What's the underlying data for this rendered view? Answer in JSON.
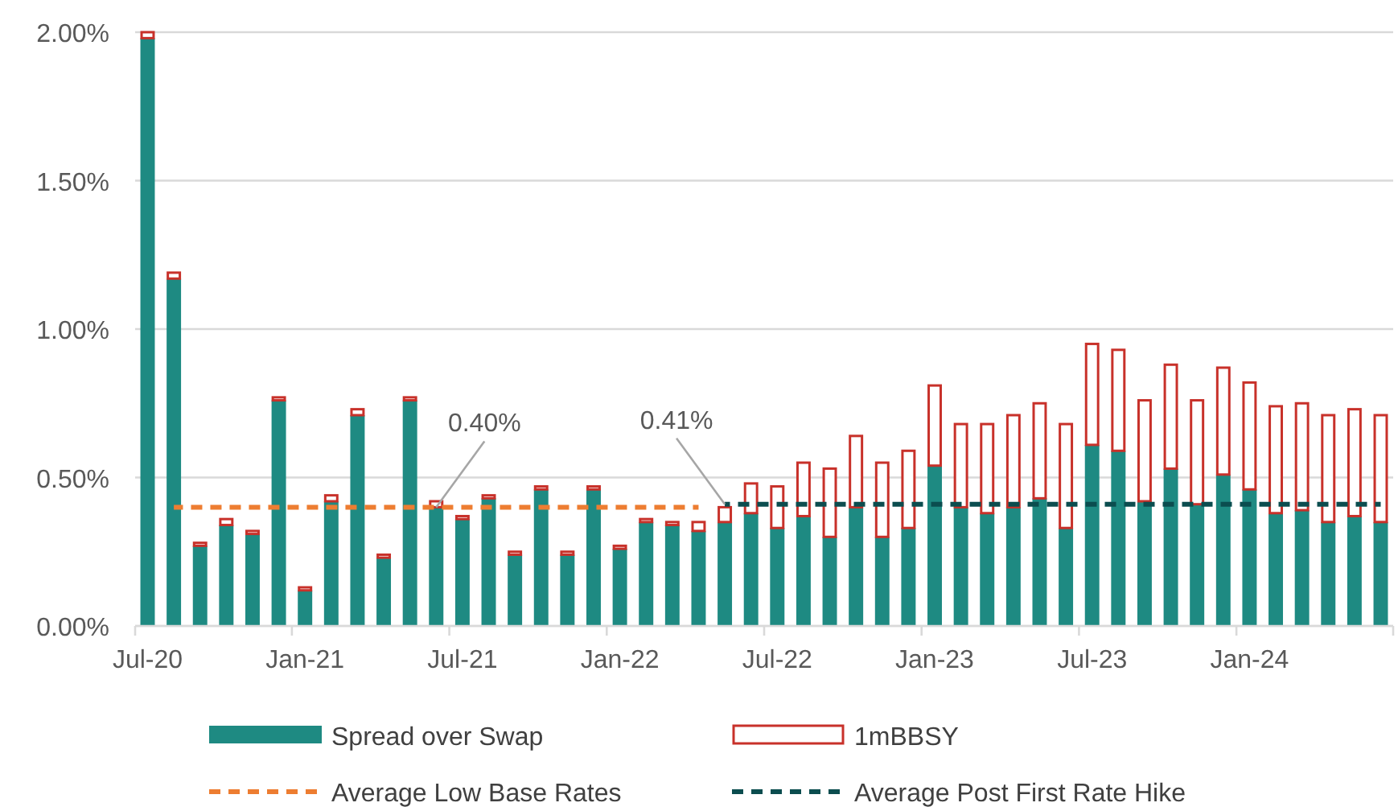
{
  "chart_data": {
    "type": "bar",
    "stacked": true,
    "categories": [
      "Jul-20",
      null,
      null,
      null,
      null,
      null,
      "Jan-21",
      null,
      null,
      null,
      null,
      null,
      "Jul-21",
      null,
      null,
      null,
      null,
      null,
      "Jan-22",
      null,
      null,
      null,
      null,
      null,
      "Jul-22",
      null,
      null,
      null,
      null,
      null,
      "Jan-23",
      null,
      null,
      null,
      null,
      null,
      "Jul-23",
      null,
      null,
      null,
      null,
      null,
      "Jan-24",
      null,
      null,
      null,
      null,
      null
    ],
    "series": [
      {
        "name": "Spread over Swap",
        "color": "#1e8a82",
        "values": [
          1.98,
          1.17,
          0.27,
          0.34,
          0.31,
          0.76,
          0.12,
          0.42,
          0.71,
          0.23,
          0.76,
          0.4,
          0.36,
          0.43,
          0.24,
          0.46,
          0.24,
          0.46,
          0.26,
          0.35,
          0.34,
          0.32,
          0.35,
          0.38,
          0.33,
          0.37,
          0.3,
          0.4,
          0.3,
          0.33,
          0.54,
          0.4,
          0.38,
          0.4,
          0.43,
          0.33,
          0.61,
          0.59,
          0.42,
          0.53,
          0.41,
          0.51,
          0.46,
          0.38,
          0.39,
          0.35,
          0.37,
          0.35
        ]
      },
      {
        "name": "1mBBSY",
        "color": "#c8312a",
        "values": [
          0.02,
          0.02,
          0.01,
          0.02,
          0.01,
          0.01,
          0.01,
          0.02,
          0.02,
          0.01,
          0.01,
          0.02,
          0.01,
          0.01,
          0.01,
          0.01,
          0.01,
          0.01,
          0.01,
          0.01,
          0.01,
          0.03,
          0.05,
          0.1,
          0.14,
          0.18,
          0.23,
          0.24,
          0.25,
          0.26,
          0.27,
          0.28,
          0.3,
          0.31,
          0.32,
          0.35,
          0.34,
          0.34,
          0.34,
          0.35,
          0.35,
          0.36,
          0.36,
          0.36,
          0.36,
          0.36,
          0.36,
          0.36
        ]
      },
      {
        "name": "Average Low Base Rates",
        "type": "line",
        "line_style": "dashed",
        "color": "#ed7d31",
        "values": [
          null,
          0.4,
          0.4,
          0.4,
          0.4,
          0.4,
          0.4,
          0.4,
          0.4,
          0.4,
          0.4,
          0.4,
          0.4,
          0.4,
          0.4,
          0.4,
          0.4,
          0.4,
          0.4,
          0.4,
          0.4,
          0.4,
          null,
          null,
          null,
          null,
          null,
          null,
          null,
          null,
          null,
          null,
          null,
          null,
          null,
          null,
          null,
          null,
          null,
          null,
          null,
          null,
          null,
          null,
          null,
          null,
          null,
          null
        ]
      },
      {
        "name": "Average Post First Rate Hike",
        "type": "line",
        "line_style": "dashed",
        "color": "#0b4d4f",
        "values": [
          null,
          null,
          null,
          null,
          null,
          null,
          null,
          null,
          null,
          null,
          null,
          null,
          null,
          null,
          null,
          null,
          null,
          null,
          null,
          null,
          null,
          null,
          0.41,
          0.41,
          0.41,
          0.41,
          0.41,
          0.41,
          0.41,
          0.41,
          0.41,
          0.41,
          0.41,
          0.41,
          0.41,
          0.41,
          0.41,
          0.41,
          0.41,
          0.41,
          0.41,
          0.41,
          0.41,
          0.41,
          0.41,
          0.41,
          0.41,
          0.41
        ]
      }
    ],
    "annotations": [
      {
        "text": "0.40%",
        "y": 0.4
      },
      {
        "text": "0.41%",
        "y": 0.41
      }
    ],
    "ylim": [
      0,
      2
    ],
    "yticks": [
      {
        "value": 0,
        "label": "0.00%"
      },
      {
        "value": 0.5,
        "label": "0.50%"
      },
      {
        "value": 1,
        "label": "1.00%"
      },
      {
        "value": 1.5,
        "label": "1.50%"
      },
      {
        "value": 2,
        "label": "2.00%"
      }
    ],
    "grid": "y",
    "legend": "bottom"
  }
}
